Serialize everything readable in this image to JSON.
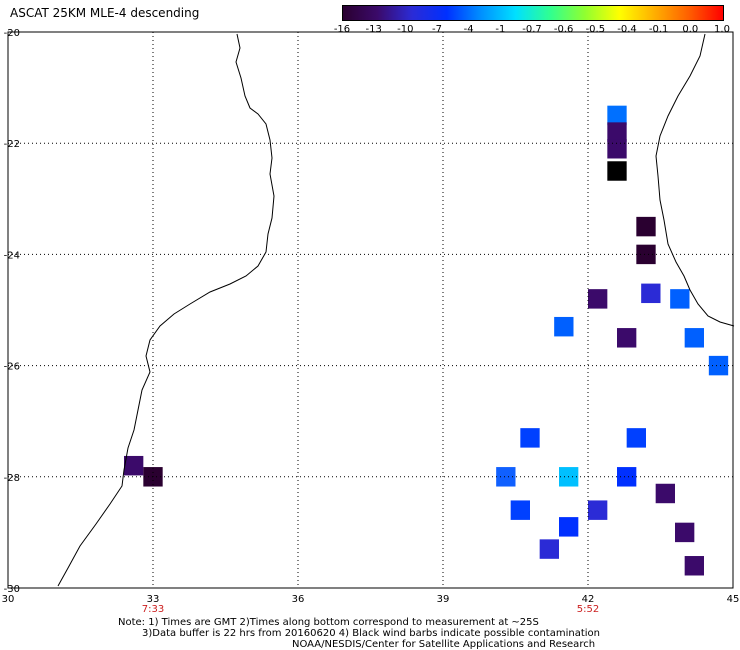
{
  "title": "ASCAT 25KM MLE-4 descending",
  "colorbar": {
    "labels": [
      "-16",
      "-13",
      "-10",
      "-7",
      "-4",
      "-1",
      "-0.7",
      "-0.6",
      "-0.5",
      "-0.4",
      "-0.1",
      "0.0",
      "1.0"
    ],
    "colors": [
      "#2a0030",
      "#3b0a6a",
      "#2b2bd6",
      "#0030ff",
      "#0090ff",
      "#00e0ff",
      "#30ff90",
      "#90ff30",
      "#ffff00",
      "#ffb000",
      "#ff6000",
      "#ff0000"
    ]
  },
  "axes": {
    "x_ticks": [
      "30",
      "33",
      "36",
      "39",
      "42",
      "45"
    ],
    "y_ticks": [
      "-20",
      "-22",
      "-24",
      "-26",
      "-28",
      "-30"
    ],
    "time_labels": [
      {
        "text": "7:33",
        "lon": 33
      },
      {
        "text": "5:52",
        "lon": 42
      }
    ]
  },
  "notes": [
    "Note: 1) Times are GMT 2)Times along bottom correspond to measurement at ~25S",
    "3)Data buffer is 22 hrs from 20160620 4) Black wind barbs indicate possible contamination",
    "NOAA/NESDIS/Center for Satellite Applications and Research"
  ],
  "map_data": {
    "lon_range": [
      30,
      45
    ],
    "lat_range": [
      -30,
      -20
    ],
    "cells": [
      {
        "lon": 42.6,
        "lat": -21.5,
        "c": "#0070ff"
      },
      {
        "lon": 42.6,
        "lat": -21.8,
        "c": "#3b0a6a"
      },
      {
        "lon": 42.6,
        "lat": -22.1,
        "c": "#3b0a6a"
      },
      {
        "lon": 42.6,
        "lat": -22.5,
        "c": "#000000"
      },
      {
        "lon": 43.2,
        "lat": -23.5,
        "c": "#2a0030"
      },
      {
        "lon": 43.2,
        "lat": -24.0,
        "c": "#2a0030"
      },
      {
        "lon": 42.2,
        "lat": -24.8,
        "c": "#3b0a6a"
      },
      {
        "lon": 43.3,
        "lat": -24.7,
        "c": "#2b2bd6"
      },
      {
        "lon": 43.9,
        "lat": -24.8,
        "c": "#0060ff"
      },
      {
        "lon": 41.5,
        "lat": -25.3,
        "c": "#0060ff"
      },
      {
        "lon": 42.8,
        "lat": -25.5,
        "c": "#3b0a6a"
      },
      {
        "lon": 44.2,
        "lat": -25.5,
        "c": "#0060ff"
      },
      {
        "lon": 44.7,
        "lat": -26.0,
        "c": "#0060ff"
      },
      {
        "lon": 40.8,
        "lat": -27.3,
        "c": "#0040ff"
      },
      {
        "lon": 43.0,
        "lat": -27.3,
        "c": "#0040ff"
      },
      {
        "lon": 40.3,
        "lat": -28.0,
        "c": "#1060ff"
      },
      {
        "lon": 41.6,
        "lat": -28.0,
        "c": "#00c0ff"
      },
      {
        "lon": 42.8,
        "lat": -28.0,
        "c": "#0030ff"
      },
      {
        "lon": 43.6,
        "lat": -28.3,
        "c": "#3b0a6a"
      },
      {
        "lon": 40.6,
        "lat": -28.6,
        "c": "#0040ff"
      },
      {
        "lon": 41.6,
        "lat": -28.9,
        "c": "#0030ff"
      },
      {
        "lon": 42.2,
        "lat": -28.6,
        "c": "#2b2bd6"
      },
      {
        "lon": 41.2,
        "lat": -29.3,
        "c": "#2b2bd6"
      },
      {
        "lon": 44.0,
        "lat": -29.0,
        "c": "#3b0a6a"
      },
      {
        "lon": 44.2,
        "lat": -29.6,
        "c": "#3b0a6a"
      },
      {
        "lon": 32.6,
        "lat": -27.8,
        "c": "#3b0a6a"
      },
      {
        "lon": 33.0,
        "lat": -28.0,
        "c": "#2a0030"
      }
    ]
  }
}
